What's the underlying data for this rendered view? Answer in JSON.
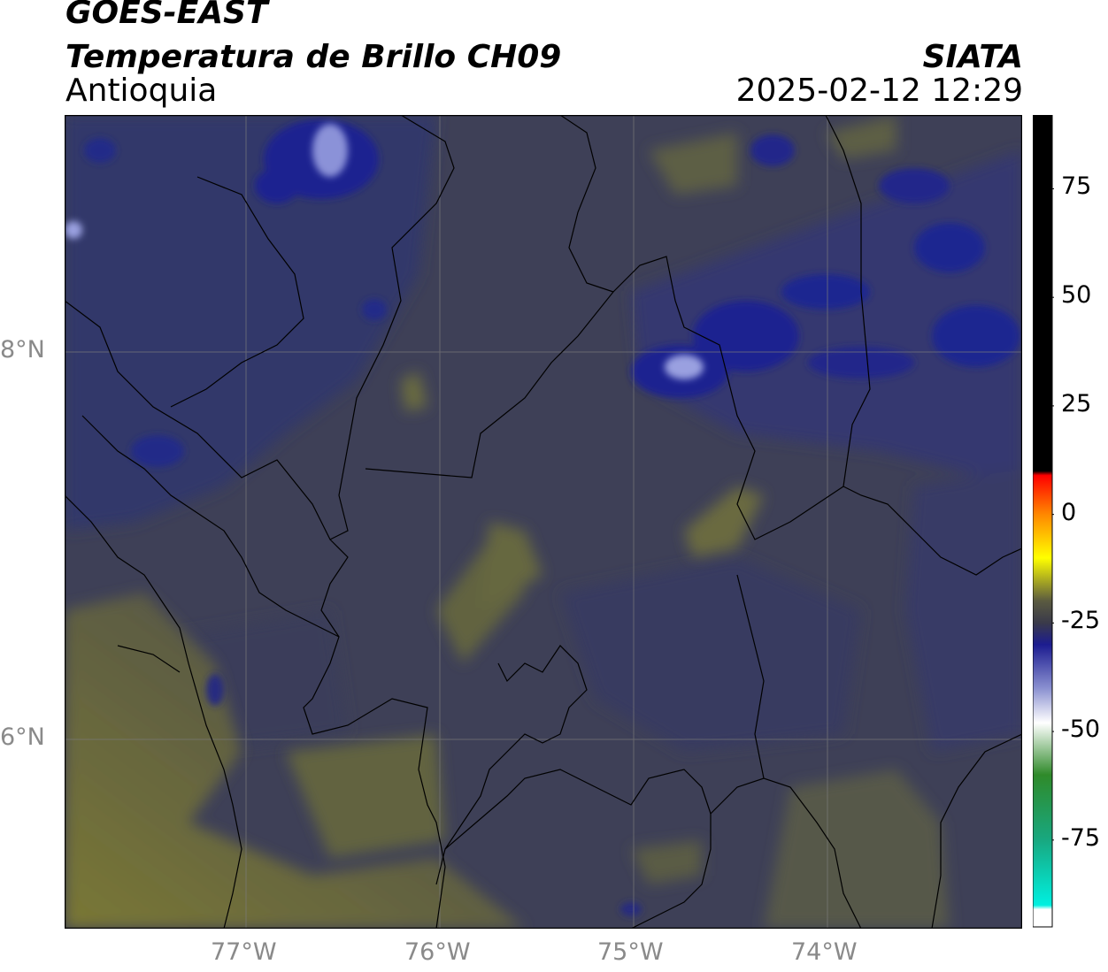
{
  "header": {
    "title": "GOES-EAST",
    "subtitle": "Temperatura de Brillo CH09",
    "region": "Antioquia",
    "brand": "SIATA",
    "datetime": "2025-02-12 12:29"
  },
  "map": {
    "lon_range": [
      -77.95,
      -73.0
    ],
    "lat_range": [
      4.95,
      9.15
    ],
    "lon_ticks": [
      "77°W",
      "76°W",
      "75°W",
      "74°W"
    ],
    "lat_ticks": [
      "8°N",
      "6°N"
    ],
    "gridlines": true,
    "field_description_colors": {
      "background": "#3c3f5a",
      "warm_olive": "#6f7040",
      "cold_blue": "#1c2080",
      "coldest": "#b8bce8"
    }
  },
  "colorbar": {
    "tick_labels": [
      "75",
      "50",
      "25",
      "0",
      "-25",
      "-50",
      "-75"
    ],
    "tick_values": [
      75,
      50,
      25,
      0,
      -25,
      -50,
      -75
    ],
    "range": [
      -95,
      92
    ],
    "stops": [
      {
        "v": 92,
        "c": "#000000"
      },
      {
        "v": 10,
        "c": "#000000"
      },
      {
        "v": 9,
        "c": "#ff0000"
      },
      {
        "v": 0,
        "c": "#ff8800"
      },
      {
        "v": -10,
        "c": "#ffff00"
      },
      {
        "v": -20,
        "c": "#5a5a40"
      },
      {
        "v": -25,
        "c": "#3a3a4a"
      },
      {
        "v": -30,
        "c": "#1c1c90"
      },
      {
        "v": -40,
        "c": "#8a90d0"
      },
      {
        "v": -48,
        "c": "#ffffff"
      },
      {
        "v": -60,
        "c": "#2f8a2a"
      },
      {
        "v": -75,
        "c": "#18a880"
      },
      {
        "v": -90,
        "c": "#00f0e0"
      },
      {
        "v": -91,
        "c": "#ffffff"
      },
      {
        "v": -95,
        "c": "#ffffff"
      }
    ]
  }
}
